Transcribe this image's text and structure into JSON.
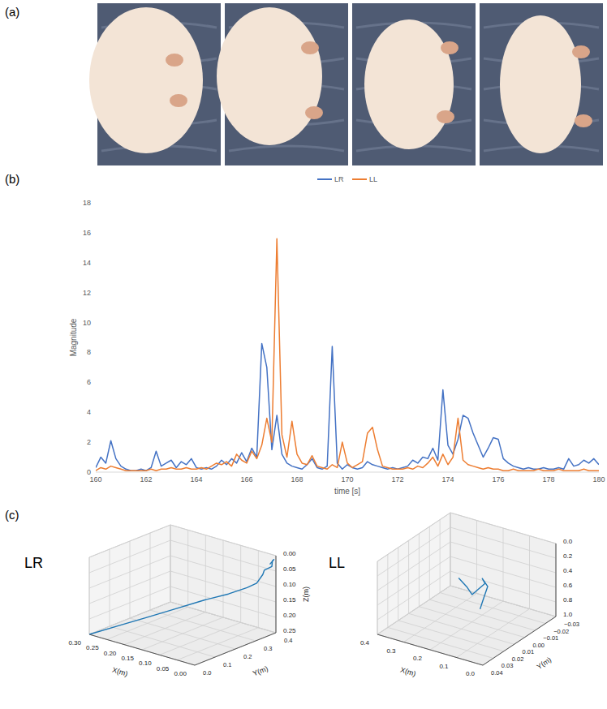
{
  "panel_labels": [
    "(a)",
    "(b)",
    "(c)"
  ],
  "chart_data": [
    {
      "type": "line",
      "xlabel": "time [s]",
      "ylabel": "Magnitude",
      "x": [
        160,
        160.2,
        160.4,
        160.6,
        160.8,
        161,
        161.2,
        161.4,
        161.6,
        161.8,
        162,
        162.2,
        162.4,
        162.6,
        162.8,
        163,
        163.2,
        163.4,
        163.6,
        163.8,
        164,
        164.2,
        164.4,
        164.6,
        164.8,
        165,
        165.2,
        165.4,
        165.6,
        165.8,
        166,
        166.2,
        166.4,
        166.6,
        166.8,
        167,
        167.2,
        167.4,
        167.6,
        167.8,
        168,
        168.2,
        168.4,
        168.6,
        168.8,
        169,
        169.2,
        169.4,
        169.6,
        169.8,
        170,
        170.2,
        170.4,
        170.6,
        170.8,
        171,
        171.2,
        171.4,
        171.6,
        171.8,
        172,
        172.2,
        172.4,
        172.6,
        172.8,
        173,
        173.2,
        173.4,
        173.6,
        173.8,
        174,
        174.2,
        174.4,
        174.6,
        174.8,
        175,
        175.2,
        175.4,
        175.6,
        175.8,
        176,
        176.2,
        176.4,
        176.6,
        176.8,
        177,
        177.2,
        177.4,
        177.6,
        177.8,
        178,
        178.2,
        178.4,
        178.6,
        178.8,
        179,
        179.2,
        179.4,
        179.6,
        179.8,
        180
      ],
      "series": [
        {
          "name": "LR",
          "color": "#4472c4",
          "values": [
            0.3,
            1.0,
            0.6,
            2.1,
            0.9,
            0.4,
            0.2,
            0.1,
            0.1,
            0.2,
            0.1,
            0.3,
            1.4,
            0.4,
            0.6,
            0.8,
            0.3,
            0.7,
            0.5,
            0.9,
            0.3,
            0.2,
            0.3,
            0.2,
            0.4,
            0.8,
            0.5,
            0.9,
            0.6,
            1.3,
            0.7,
            1.6,
            1.0,
            8.6,
            7.0,
            1.5,
            3.8,
            1.2,
            0.6,
            0.4,
            0.3,
            0.2,
            0.5,
            0.9,
            0.3,
            0.2,
            0.4,
            8.4,
            0.6,
            0.2,
            0.5,
            0.3,
            0.2,
            0.3,
            0.7,
            0.5,
            0.4,
            0.3,
            0.2,
            0.3,
            0.2,
            0.3,
            0.4,
            0.8,
            0.6,
            1.0,
            0.9,
            1.6,
            0.8,
            5.5,
            1.8,
            1.2,
            2.2,
            3.8,
            3.6,
            2.6,
            1.8,
            1.0,
            1.6,
            2.3,
            2.2,
            0.9,
            0.6,
            0.4,
            0.3,
            0.2,
            0.3,
            0.2,
            0.2,
            0.3,
            0.2,
            0.2,
            0.3,
            0.2,
            0.9,
            0.4,
            0.5,
            0.8,
            0.6,
            0.9,
            0.5
          ]
        },
        {
          "name": "LL",
          "color": "#ed7d31",
          "values": [
            0.1,
            0.3,
            0.2,
            0.4,
            0.3,
            0.2,
            0.1,
            0.1,
            0.1,
            0.1,
            0.1,
            0.2,
            0.1,
            0.2,
            0.2,
            0.3,
            0.2,
            0.2,
            0.3,
            0.2,
            0.2,
            0.3,
            0.2,
            0.4,
            0.6,
            0.5,
            0.7,
            0.4,
            1.2,
            0.8,
            0.6,
            1.4,
            0.9,
            1.8,
            3.6,
            2.0,
            15.6,
            2.5,
            1.0,
            3.4,
            1.2,
            0.6,
            0.5,
            1.1,
            0.4,
            0.3,
            0.2,
            0.5,
            0.3,
            2.0,
            0.6,
            0.3,
            0.5,
            0.7,
            2.6,
            3.0,
            1.5,
            0.4,
            0.3,
            0.2,
            0.2,
            0.2,
            0.3,
            0.2,
            0.4,
            0.3,
            0.6,
            1.0,
            0.4,
            1.2,
            0.5,
            1.0,
            3.6,
            0.8,
            0.5,
            0.4,
            0.3,
            0.2,
            0.3,
            0.2,
            0.2,
            0.1,
            0.1,
            0.2,
            0.1,
            0.1,
            0.1,
            0.1,
            0.2,
            0.1,
            0.1,
            0.1,
            0.2,
            0.1,
            0.1,
            0.1,
            0.1,
            0.2,
            0.1,
            0.1,
            0.1
          ]
        }
      ],
      "xlim": [
        160,
        180
      ],
      "xticks": [
        160,
        162,
        164,
        166,
        168,
        170,
        172,
        174,
        176,
        178,
        180
      ],
      "ylim": [
        0,
        18
      ],
      "yticks": [
        0,
        2,
        4,
        6,
        8,
        10,
        12,
        14,
        16,
        18
      ],
      "grid": false,
      "legend": "top"
    },
    {
      "type": "line3d",
      "title": "LR",
      "xlabel": "X(m)",
      "ylabel": "Y(m)",
      "zlabel": "Z(m)",
      "xlim": [
        0.3,
        0.0
      ],
      "ylim": [
        0.0,
        0.4
      ],
      "zlim": [
        0.25,
        0.0
      ],
      "xticks": [
        {
          "value": 0.0,
          "label": "0.00"
        },
        {
          "value": 0.05,
          "label": "0.05"
        },
        {
          "value": 0.1,
          "label": "0.10"
        },
        {
          "value": 0.15,
          "label": "0.15"
        },
        {
          "value": 0.2,
          "label": "0.20"
        },
        {
          "value": 0.25,
          "label": "0.25"
        },
        {
          "value": 0.3,
          "label": "0.30"
        }
      ],
      "yticks": [
        {
          "value": 0.0,
          "label": "0.0"
        },
        {
          "value": 0.1,
          "label": "0.1"
        },
        {
          "value": 0.2,
          "label": "0.2"
        },
        {
          "value": 0.3,
          "label": "0.3"
        },
        {
          "value": 0.4,
          "label": "0.4"
        }
      ],
      "zticks": [
        {
          "value": 0.0,
          "label": "0.00"
        },
        {
          "value": 0.05,
          "label": "0.05"
        },
        {
          "value": 0.1,
          "label": "0.10"
        },
        {
          "value": 0.15,
          "label": "0.15"
        },
        {
          "value": 0.2,
          "label": "0.20"
        },
        {
          "value": 0.25,
          "label": "0.25"
        }
      ],
      "grid": true,
      "series": [
        {
          "color": "#1f77b4",
          "x": [
            0.3,
            0.25,
            0.2,
            0.15,
            0.1,
            0.06,
            0.03,
            0.02,
            0.02,
            0.01,
            0.0,
            0.01,
            0.0,
            0.0
          ],
          "y": [
            0.0,
            0.05,
            0.1,
            0.16,
            0.22,
            0.27,
            0.31,
            0.34,
            0.37,
            0.36,
            0.38,
            0.4,
            0.39,
            0.37
          ],
          "z": [
            0.25,
            0.22,
            0.19,
            0.16,
            0.13,
            0.11,
            0.09,
            0.08,
            0.06,
            0.04,
            0.03,
            0.02,
            0.01,
            0.02
          ]
        }
      ]
    },
    {
      "type": "line3d",
      "title": "LL",
      "xlabel": "X(m)",
      "ylabel": "Y(m)",
      "xlim": [
        0.4,
        0.0
      ],
      "ylim": [
        0.04,
        -0.03
      ],
      "zlim": [
        1.0,
        0.0
      ],
      "xticks": [
        {
          "value": 0.0,
          "label": "0.0"
        },
        {
          "value": 0.1,
          "label": "0.1"
        },
        {
          "value": 0.2,
          "label": "0.2"
        },
        {
          "value": 0.3,
          "label": "0.3"
        },
        {
          "value": 0.4,
          "label": "0.4"
        }
      ],
      "yticks": [
        {
          "value": -0.03,
          "label": "−0.03"
        },
        {
          "value": -0.02,
          "label": "−0.02"
        },
        {
          "value": -0.01,
          "label": "−0.01"
        },
        {
          "value": 0.0,
          "label": "0.00"
        },
        {
          "value": 0.01,
          "label": "0.01"
        },
        {
          "value": 0.02,
          "label": "0.02"
        },
        {
          "value": 0.03,
          "label": "0.03"
        },
        {
          "value": 0.04,
          "label": "0.04"
        }
      ],
      "zticks": [
        {
          "value": 0.0,
          "label": "0.0"
        },
        {
          "value": 0.2,
          "label": "0.2"
        },
        {
          "value": 0.4,
          "label": "0.4"
        },
        {
          "value": 0.6,
          "label": "0.6"
        },
        {
          "value": 0.8,
          "label": "0.8"
        },
        {
          "value": 1.0,
          "label": "1.0"
        }
      ],
      "grid": true,
      "series": [
        {
          "color": "#1f77b4",
          "x": [
            0.25,
            0.18,
            0.12,
            0.15,
            0.2,
            0.14,
            0.08,
            0.05
          ],
          "y": [
            0.0,
            0.01,
            0.02,
            0.0,
            -0.01,
            0.0,
            0.02,
            0.03
          ],
          "z": [
            0.45,
            0.4,
            0.35,
            0.42,
            0.5,
            0.45,
            0.4,
            0.38
          ]
        }
      ]
    }
  ]
}
